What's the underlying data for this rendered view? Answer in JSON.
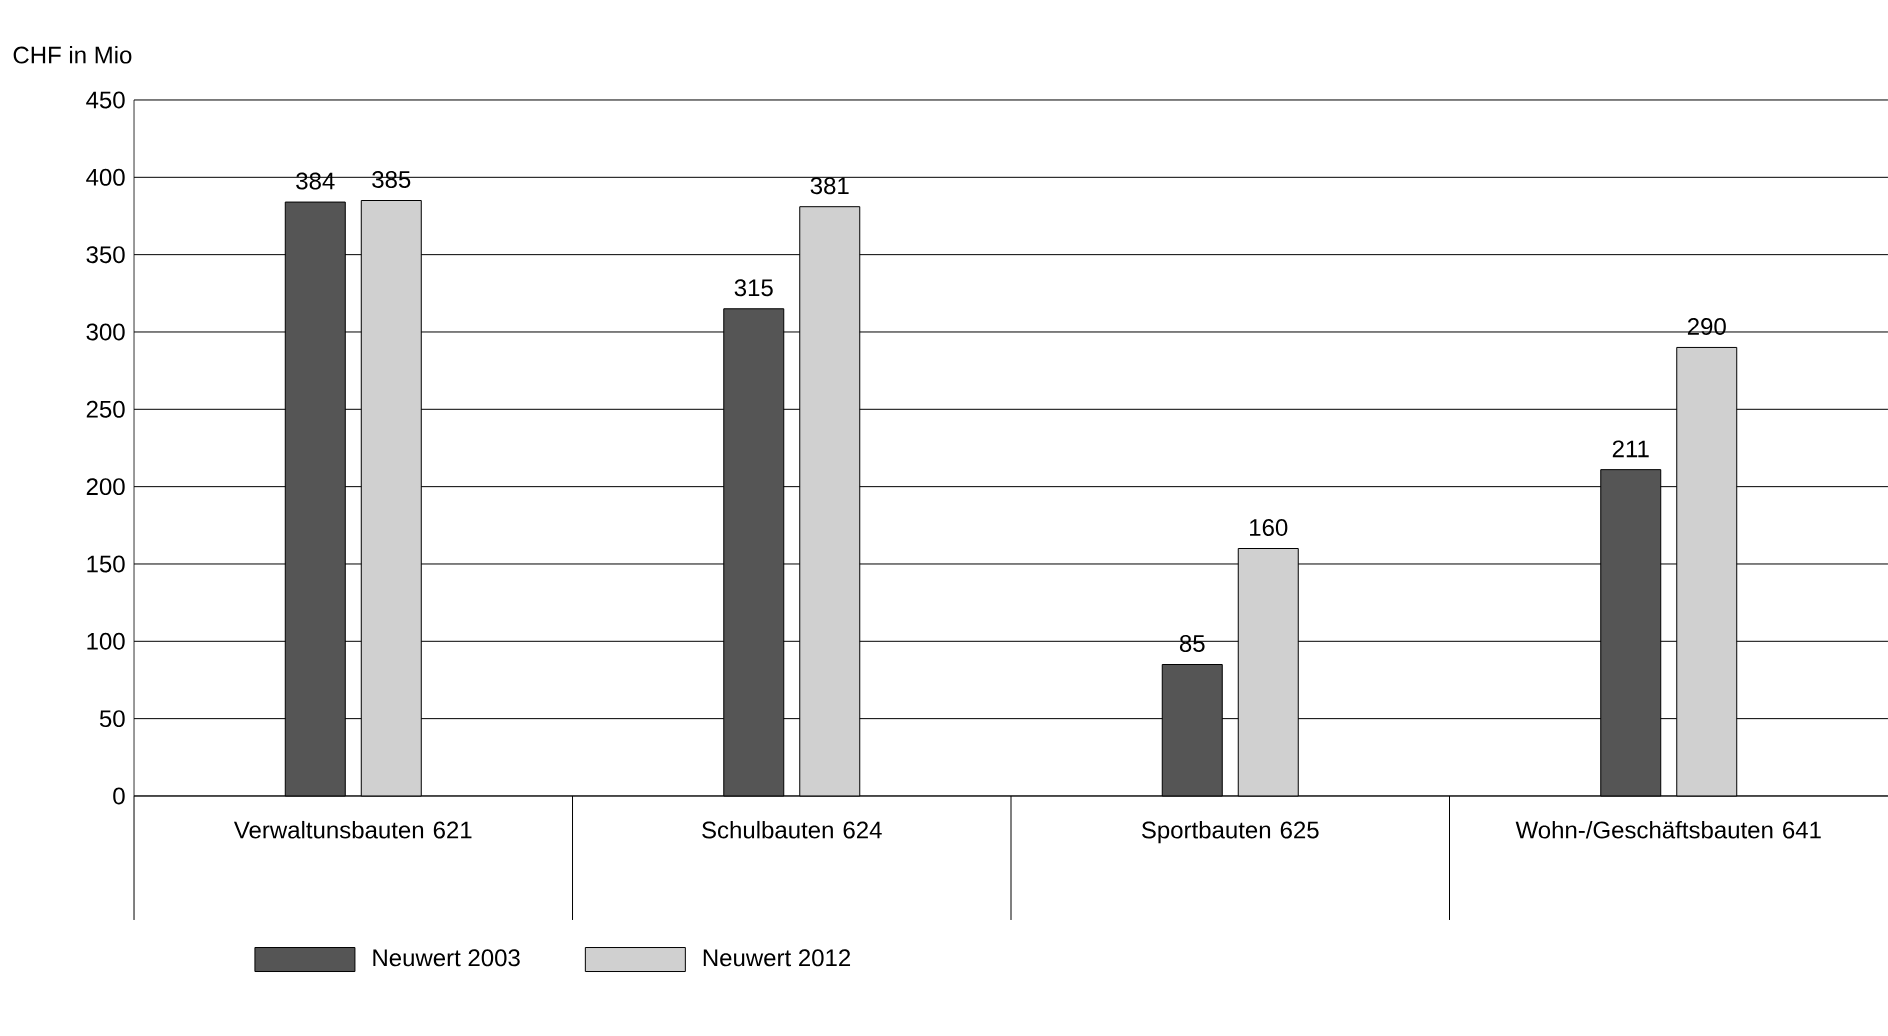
{
  "chart_data": {
    "type": "bar",
    "ylabel": "CHF in Mio",
    "categories": [
      "Verwaltunsbauten 621",
      "Schulbauten 624",
      "Sportbauten 625",
      "Wohn-/Geschäftsbauten 641"
    ],
    "series": [
      {
        "name": "Neuwert 2003",
        "color": "#555555",
        "values": [
          384,
          315,
          85,
          211
        ]
      },
      {
        "name": "Neuwert 2012",
        "color": "#d0d0d0",
        "values": [
          385,
          381,
          160,
          290
        ]
      }
    ],
    "ylim": [
      0,
      450
    ],
    "yticks": [
      0,
      50,
      100,
      150,
      200,
      250,
      300,
      350,
      400,
      450
    ],
    "grid": "y",
    "legend": "bottom left",
    "data_labels": true
  }
}
